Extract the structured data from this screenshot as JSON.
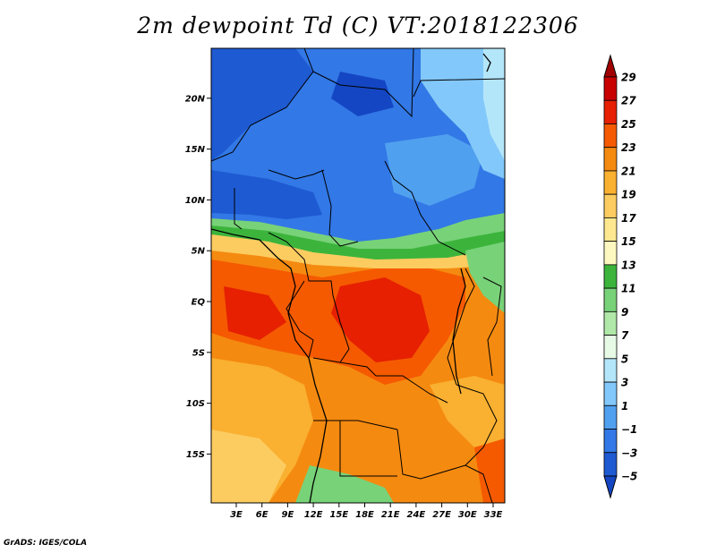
{
  "title": "2m dewpoint Td (C) VT:2018122306",
  "credit": "GrADS: IGES/COLA",
  "map": {
    "lat_labels": [
      {
        "text": "20N",
        "value": 20
      },
      {
        "text": "15N",
        "value": 15
      },
      {
        "text": "10N",
        "value": 10
      },
      {
        "text": "5N",
        "value": 5
      },
      {
        "text": "EQ",
        "value": 0
      },
      {
        "text": "5S",
        "value": -5
      },
      {
        "text": "10S",
        "value": -10
      },
      {
        "text": "15S",
        "value": -15
      }
    ],
    "lon_labels": [
      {
        "text": "3E",
        "value": 3
      },
      {
        "text": "6E",
        "value": 6
      },
      {
        "text": "9E",
        "value": 9
      },
      {
        "text": "12E",
        "value": 12
      },
      {
        "text": "15E",
        "value": 15
      },
      {
        "text": "18E",
        "value": 18
      },
      {
        "text": "21E",
        "value": 21
      },
      {
        "text": "24E",
        "value": 24
      },
      {
        "text": "27E",
        "value": 27
      },
      {
        "text": "30E",
        "value": 30
      },
      {
        "text": "33E",
        "value": 33
      }
    ]
  },
  "legend": {
    "labels": [
      "29",
      "27",
      "25",
      "23",
      "21",
      "19",
      "17",
      "15",
      "13",
      "11",
      "9",
      "7",
      "5",
      "3",
      "1",
      "−1",
      "−3",
      "−5"
    ],
    "colors": [
      "#a00000",
      "#c80000",
      "#e62000",
      "#f55a00",
      "#f58a10",
      "#fab030",
      "#fccc60",
      "#fde890",
      "#fdf8c0",
      "#3cb43c",
      "#78d278",
      "#b0e8a8",
      "#e6fae6",
      "#b4e6fa",
      "#82c8fa",
      "#50a0f0",
      "#3278e6",
      "#1e5ad2",
      "#1446c3"
    ]
  }
}
